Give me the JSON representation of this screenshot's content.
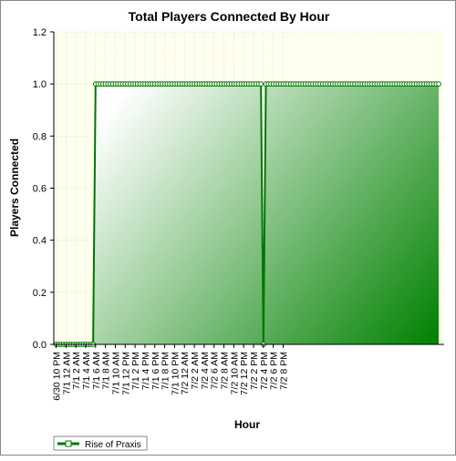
{
  "chart_data": {
    "type": "area",
    "title": "Total Players Connected By Hour",
    "xlabel": "Hour",
    "ylabel": "Players Connected",
    "ylim": [
      0,
      1.2
    ],
    "yticks": [
      "0.0",
      "0.2",
      "0.4",
      "0.6",
      "0.8",
      "1.0",
      "1.2"
    ],
    "grid": true,
    "legend_position": "bottom-left",
    "x_tick_labels": [
      "6/30 10 PM",
      "7/1 12 AM",
      "7/1 2 AM",
      "7/1 4 AM",
      "7/1 6 AM",
      "7/1 8 AM",
      "7/1 10 AM",
      "7/1 12 PM",
      "7/1 2 PM",
      "7/1 4 PM",
      "7/1 6 PM",
      "7/1 8 PM",
      "7/1 10 PM",
      "7/2 12 AM",
      "7/2 2 AM",
      "7/2 4 AM",
      "7/2 6 AM",
      "7/2 8 AM",
      "7/2 10 AM",
      "7/2 12 PM",
      "7/2 2 PM",
      "7/2 4 PM",
      "7/2 6 PM",
      "7/2 8 PM"
    ],
    "x_start": "6/30 10 PM",
    "x_step_minutes": 30,
    "series": [
      {
        "name": "Rise of Praxis",
        "values": [
          0,
          0,
          0,
          0,
          0,
          0,
          0,
          0,
          0,
          0,
          0,
          0,
          0,
          0,
          0,
          0,
          1,
          1,
          1,
          1,
          1,
          1,
          1,
          1,
          1,
          1,
          1,
          1,
          1,
          1,
          1,
          1,
          1,
          1,
          1,
          1,
          1,
          1,
          1,
          1,
          1,
          1,
          1,
          1,
          1,
          1,
          1,
          1,
          1,
          1,
          1,
          1,
          1,
          1,
          1,
          1,
          1,
          1,
          1,
          1,
          1,
          1,
          1,
          1,
          1,
          1,
          1,
          1,
          1,
          1,
          1,
          1,
          1,
          1,
          1,
          1,
          1,
          1,
          1,
          1,
          1,
          1,
          1,
          1,
          0,
          1,
          1,
          1,
          1,
          1,
          1,
          1,
          1,
          1,
          1,
          1,
          1,
          1,
          1,
          1,
          1,
          1,
          1,
          1,
          1,
          1,
          1,
          1,
          1,
          1,
          1,
          1,
          1,
          1,
          1,
          1,
          1,
          1,
          1,
          1,
          1,
          1,
          1,
          1,
          1,
          1,
          1,
          1,
          1,
          1,
          1,
          1,
          1,
          1,
          1,
          1,
          1,
          1,
          1,
          1,
          1,
          1,
          1,
          1,
          1,
          1,
          1,
          1,
          1,
          1,
          1,
          1,
          1,
          1,
          1,
          1
        ]
      }
    ],
    "colors": {
      "line": "#007700",
      "fill_light": "#ffffff",
      "fill_dark": "#008000",
      "plot_bg": "#ffffee",
      "marker_fill": "#ffffff"
    }
  }
}
